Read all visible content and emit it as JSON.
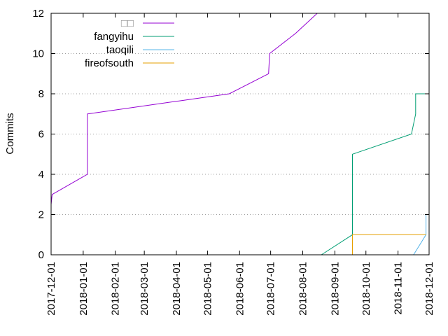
{
  "chart_data": {
    "type": "line",
    "title": "",
    "xlabel": "",
    "ylabel": "Commits",
    "ylim": [
      0,
      12
    ],
    "xlim": [
      "2017-12-01",
      "2018-12-01"
    ],
    "y_ticks": [
      0,
      2,
      4,
      6,
      8,
      10,
      12
    ],
    "x_ticks": [
      "2017-12-01",
      "2018-01-01",
      "2018-02-01",
      "2018-03-01",
      "2018-04-01",
      "2018-05-01",
      "2018-06-01",
      "2018-07-01",
      "2018-08-01",
      "2018-09-01",
      "2018-10-01",
      "2018-11-01",
      "2018-12-01"
    ],
    "grid": "horizontal dotted",
    "legend_position": "top-left",
    "series": [
      {
        "name": "□□",
        "color": "#9400d3",
        "points": [
          [
            "2017-12-01",
            1
          ],
          [
            "2017-12-01",
            2.5
          ],
          [
            "2017-12-02",
            3
          ],
          [
            "2018-01-05",
            4
          ],
          [
            "2018-01-05",
            7
          ],
          [
            "2018-05-22",
            8
          ],
          [
            "2018-06-29",
            9
          ],
          [
            "2018-06-30",
            10
          ],
          [
            "2018-07-25",
            11
          ],
          [
            "2018-08-15",
            12
          ]
        ]
      },
      {
        "name": "fangyihu",
        "color": "#009e73",
        "points": [
          [
            "2018-08-19",
            0
          ],
          [
            "2018-09-18",
            1
          ],
          [
            "2018-09-18",
            5
          ],
          [
            "2018-11-14",
            6
          ],
          [
            "2018-11-18",
            7
          ],
          [
            "2018-11-18",
            8
          ],
          [
            "2018-11-29",
            8
          ]
        ]
      },
      {
        "name": "taoqili",
        "color": "#56b4e9",
        "points": [
          [
            "2018-11-16",
            0
          ],
          [
            "2018-11-28",
            1
          ],
          [
            "2018-11-28",
            2
          ]
        ]
      },
      {
        "name": "fireofsouth",
        "color": "#e69f00",
        "points": [
          [
            "2018-09-18",
            0
          ],
          [
            "2018-09-18",
            1
          ],
          [
            "2018-11-28",
            1
          ]
        ]
      }
    ]
  }
}
